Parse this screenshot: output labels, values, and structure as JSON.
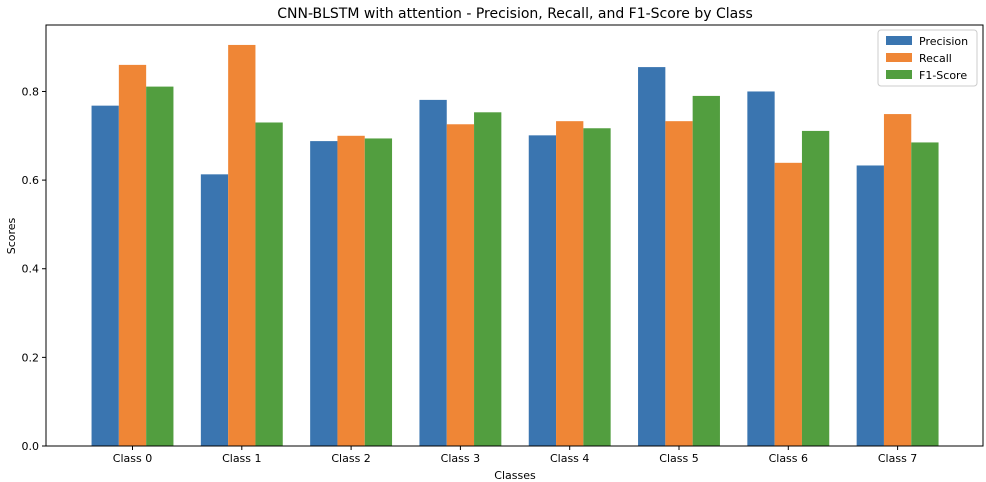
{
  "chart_data": {
    "type": "bar",
    "title": "CNN-BLSTM with attention - Precision, Recall, and F1-Score by Class",
    "xlabel": "Classes",
    "ylabel": "Scores",
    "categories": [
      "Class 0",
      "Class 1",
      "Class 2",
      "Class 3",
      "Class 4",
      "Class 5",
      "Class 6",
      "Class 7"
    ],
    "series": [
      {
        "name": "Precision",
        "color": "#3a75b0",
        "values": [
          0.768,
          0.613,
          0.688,
          0.781,
          0.701,
          0.855,
          0.8,
          0.633
        ]
      },
      {
        "name": "Recall",
        "color": "#ef8636",
        "values": [
          0.86,
          0.905,
          0.7,
          0.726,
          0.733,
          0.733,
          0.639,
          0.749
        ]
      },
      {
        "name": "F1-Score",
        "color": "#529e3f",
        "values": [
          0.811,
          0.73,
          0.694,
          0.753,
          0.717,
          0.79,
          0.711,
          0.685
        ]
      }
    ],
    "ylim": [
      0,
      0.95
    ],
    "yticks": [
      "0.0",
      "0.2",
      "0.4",
      "0.6",
      "0.8"
    ],
    "legend_position": "top-right",
    "grid": false
  }
}
